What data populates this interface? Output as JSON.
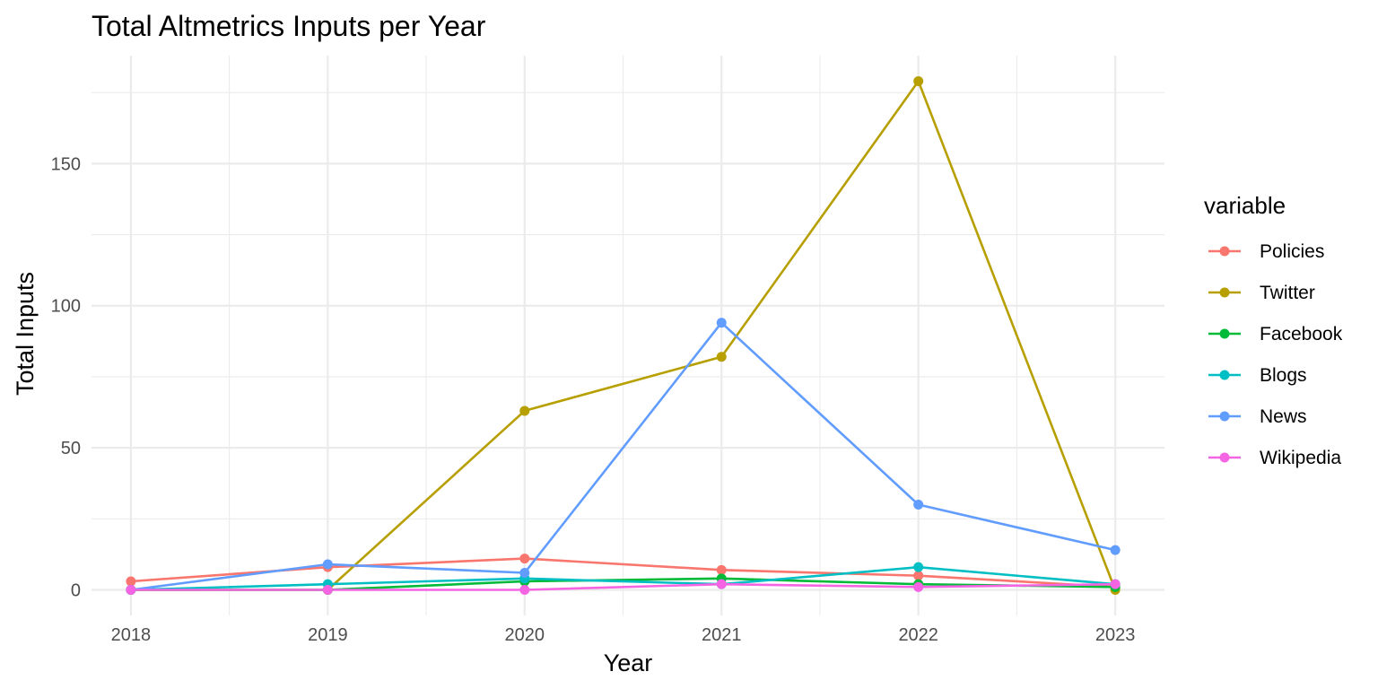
{
  "chart_data": {
    "type": "line",
    "title": "Total Altmetrics Inputs per Year",
    "xlabel": "Year",
    "ylabel": "Total Inputs",
    "x": [
      2018,
      2019,
      2020,
      2021,
      2022,
      2023
    ],
    "x_ticks": [
      "2018",
      "2019",
      "2020",
      "2021",
      "2022",
      "2023"
    ],
    "y_ticks": [
      0,
      50,
      100,
      150
    ],
    "xlim": [
      2017.8,
      2023.25
    ],
    "ylim": [
      -9,
      188
    ],
    "grid": true,
    "legend": {
      "title": "variable",
      "position": "right"
    },
    "series": [
      {
        "name": "Policies",
        "color": "#F8766D",
        "values": [
          3,
          8,
          11,
          7,
          5,
          1
        ]
      },
      {
        "name": "Twitter",
        "color": "#B79F00",
        "values": [
          0,
          0,
          63,
          82,
          179,
          0
        ]
      },
      {
        "name": "Facebook",
        "color": "#00BA38",
        "values": [
          0,
          0,
          3,
          4,
          2,
          1
        ]
      },
      {
        "name": "Blogs",
        "color": "#00BFC4",
        "values": [
          0,
          2,
          4,
          2,
          8,
          2
        ]
      },
      {
        "name": "News",
        "color": "#619CFF",
        "values": [
          0,
          9,
          6,
          94,
          30,
          14
        ]
      },
      {
        "name": "Wikipedia",
        "color": "#F564E3",
        "values": [
          0,
          0,
          0,
          2,
          1,
          2
        ]
      }
    ]
  }
}
